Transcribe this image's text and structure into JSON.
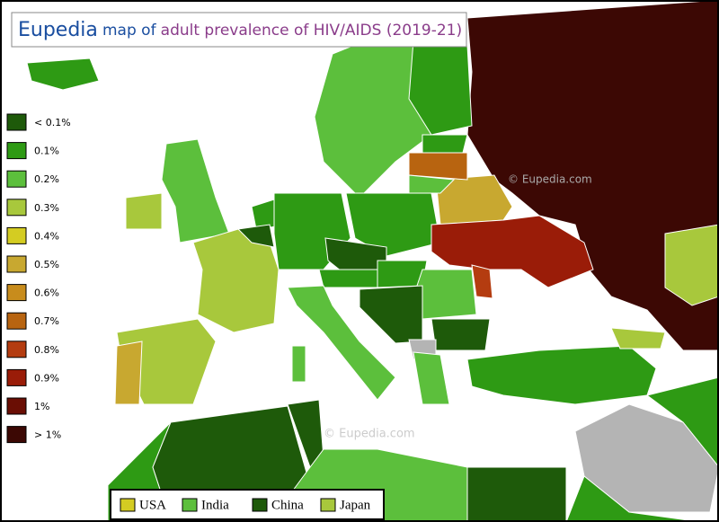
{
  "header": {
    "brand": "Eupedia",
    "prefix": "map of",
    "title": "adult prevalence of HIV/AIDS (2019-21)"
  },
  "legend": [
    {
      "label": "< 0.1%",
      "color": "#1e5a0a"
    },
    {
      "label": "0.1%",
      "color": "#2e9a14"
    },
    {
      "label": "0.2%",
      "color": "#5cbf3c"
    },
    {
      "label": "0.3%",
      "color": "#a8c83c"
    },
    {
      "label": "0.4%",
      "color": "#d4cc22"
    },
    {
      "label": "0.5%",
      "color": "#c8a830"
    },
    {
      "label": "0.6%",
      "color": "#c88c1c"
    },
    {
      "label": "0.7%",
      "color": "#b86410"
    },
    {
      "label": "0.8%",
      "color": "#b43c10"
    },
    {
      "label": "0.9%",
      "color": "#9a1c08"
    },
    {
      "label": "1%",
      "color": "#6a0e04"
    },
    {
      "label": "> 1%",
      "color": "#3c0804"
    }
  ],
  "comparison": [
    {
      "label": "USA",
      "color": "#d4cc22"
    },
    {
      "label": "India",
      "color": "#5cbf3c"
    },
    {
      "label": "China",
      "color": "#1e5a0a"
    },
    {
      "label": "Japan",
      "color": "#a8c83c"
    }
  ],
  "watermarks": [
    "© Eupedia.com",
    "© Eupedia.com"
  ]
}
